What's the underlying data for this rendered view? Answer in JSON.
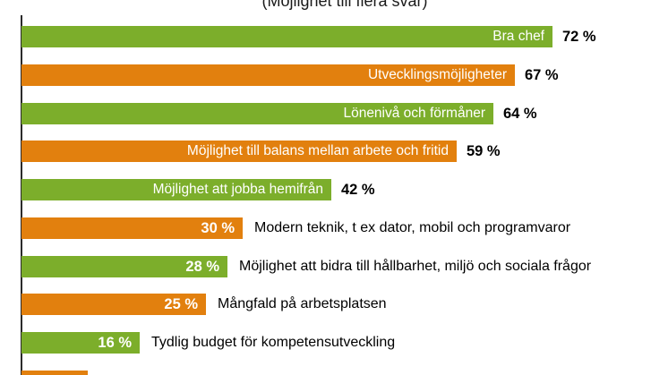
{
  "chart": {
    "subtitle": "(Möjlighet till flera svar)",
    "colors": {
      "green": "#7CAE2B",
      "orange": "#E2800E",
      "axis": "#2b2b2b",
      "inside_text": "#ffffff",
      "outside_text": "#000000"
    },
    "rows": [
      {
        "label": "Bra chef",
        "value": 72,
        "value_label": "72 %",
        "color": "green",
        "label_position": "inside"
      },
      {
        "label": "Utvecklingsmöjligheter",
        "value": 67,
        "value_label": "67 %",
        "color": "orange",
        "label_position": "inside"
      },
      {
        "label": "Lönenivå och förmåner",
        "value": 64,
        "value_label": "64 %",
        "color": "green",
        "label_position": "inside"
      },
      {
        "label": "Möjlighet till balans mellan arbete och fritid",
        "value": 59,
        "value_label": "59 %",
        "color": "orange",
        "label_position": "inside"
      },
      {
        "label": "Möjlighet att jobba hemifrån",
        "value": 42,
        "value_label": "42 %",
        "color": "green",
        "label_position": "inside"
      },
      {
        "label": "Modern teknik, t ex dator, mobil och programvaror",
        "value": 30,
        "value_label": "30 %",
        "color": "orange",
        "label_position": "outside"
      },
      {
        "label": "Möjlighet att bidra till hållbarhet, miljö och sociala frågor",
        "value": 28,
        "value_label": "28 %",
        "color": "green",
        "label_position": "outside"
      },
      {
        "label": "Mångfald på arbetsplatsen",
        "value": 25,
        "value_label": "25 %",
        "color": "orange",
        "label_position": "outside"
      },
      {
        "label": "Tydlig budget för kompetensutveckling",
        "value": 16,
        "value_label": "16 %",
        "color": "green",
        "label_position": "outside"
      },
      {
        "label": "",
        "value": 9,
        "value_label": "",
        "color": "orange",
        "label_position": "none",
        "partial": true
      }
    ]
  },
  "chart_data": {
    "type": "bar",
    "orientation": "horizontal",
    "title": "",
    "subtitle": "(Möjlighet till flera svar)",
    "categories": [
      "Bra chef",
      "Utvecklingsmöjligheter",
      "Lönenivå och förmåner",
      "Möjlighet till balans mellan arbete och fritid",
      "Möjlighet att jobba hemifrån",
      "Modern teknik, t ex dator, mobil och programvaror",
      "Möjlighet att bidra till hållbarhet, miljö och sociala frågor",
      "Mångfald på arbetsplatsen",
      "Tydlig budget för kompetensutveckling"
    ],
    "values": [
      72,
      67,
      64,
      59,
      42,
      30,
      28,
      25,
      16
    ],
    "unit": "%",
    "bar_colors": [
      "#7CAE2B",
      "#E2800E",
      "#7CAE2B",
      "#E2800E",
      "#7CAE2B",
      "#E2800E",
      "#7CAE2B",
      "#E2800E",
      "#7CAE2B"
    ],
    "legend": null,
    "grid": false,
    "xlabel": "",
    "ylabel": "",
    "partial_last_bar": {
      "color": "#E2800E",
      "estimated_value": 9,
      "label_visible": false,
      "note": "tenth bar clipped by bottom edge of image; only top sliver visible"
    },
    "layout_hints": {
      "subtitle_clipped_at_top": true,
      "labels_inside_bars_for_values_gte": 42,
      "values_inside_bars_for_values_lte": 30
    }
  }
}
